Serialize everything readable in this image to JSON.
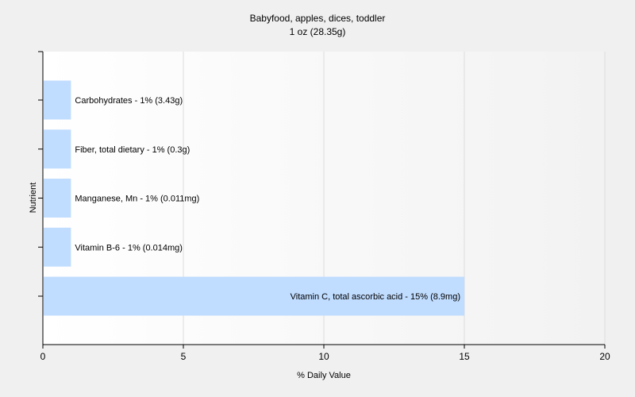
{
  "chart_data": {
    "type": "bar",
    "orientation": "horizontal",
    "title": "Babyfood, apples, dices, toddler",
    "subtitle": "1 oz (28.35g)",
    "xlabel": "% Daily Value",
    "ylabel": "Nutrient",
    "xlim": [
      0,
      20
    ],
    "xticks": [
      "0",
      "5",
      "10",
      "15",
      "20"
    ],
    "grid": true,
    "bar_color": "#c0dcff",
    "categories": [
      "Carbohydrates",
      "Fiber, total dietary",
      "Manganese, Mn",
      "Vitamin B-6",
      "Vitamin C, total ascorbic acid"
    ],
    "values": [
      1,
      1,
      1,
      1,
      15
    ],
    "bar_labels": [
      "Carbohydrates - 1% (3.43g)",
      "Fiber, total dietary - 1% (0.3g)",
      "Manganese, Mn - 1% (0.011mg)",
      "Vitamin B-6 - 1% (0.014mg)",
      "Vitamin C, total ascorbic acid - 15% (8.9mg)"
    ]
  }
}
